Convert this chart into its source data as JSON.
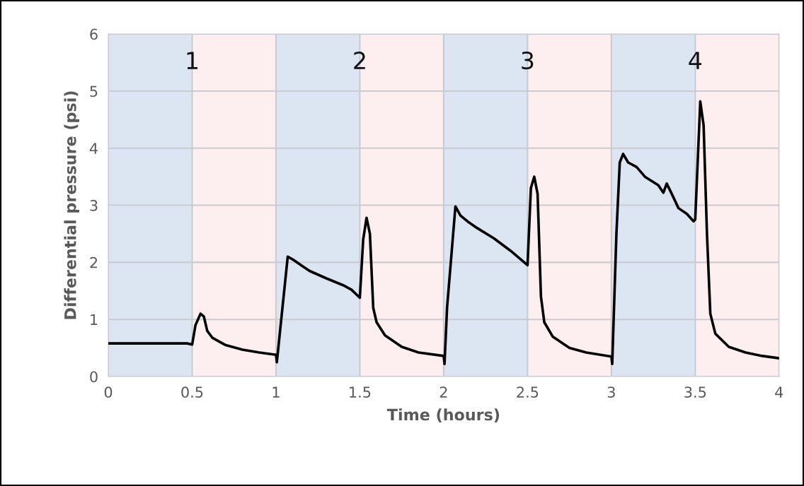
{
  "chart_data": {
    "type": "line",
    "xlabel": "Time (hours)",
    "ylabel": "Differential pressure (psi)",
    "xlim": [
      0,
      4
    ],
    "xticks": [
      0,
      0.5,
      1,
      1.5,
      2,
      2.5,
      3,
      3.5,
      4
    ],
    "ylim": [
      0,
      6
    ],
    "yticks": [
      0,
      1,
      2,
      3,
      4,
      5,
      6
    ],
    "grid": true,
    "legend": false,
    "marker": "none",
    "line_style": "solid",
    "bands": [
      {
        "axis": "x",
        "from": 0,
        "to": 0.5,
        "color": "#dce6f2"
      },
      {
        "axis": "x",
        "from": 0.5,
        "to": 1,
        "color": "#fdeeef"
      },
      {
        "axis": "x",
        "from": 1,
        "to": 1.5,
        "color": "#dce6f2"
      },
      {
        "axis": "x",
        "from": 1.5,
        "to": 2,
        "color": "#fdeeef"
      },
      {
        "axis": "x",
        "from": 2,
        "to": 2.5,
        "color": "#dce6f2"
      },
      {
        "axis": "x",
        "from": 2.5,
        "to": 3,
        "color": "#fdeeef"
      },
      {
        "axis": "x",
        "from": 3,
        "to": 3.5,
        "color": "#dce6f2"
      },
      {
        "axis": "x",
        "from": 3.5,
        "to": 4,
        "color": "#fdeeef"
      }
    ],
    "annotations": [
      {
        "text": "1",
        "x": 0.5,
        "y": 5.5
      },
      {
        "text": "2",
        "x": 1.5,
        "y": 5.5
      },
      {
        "text": "3",
        "x": 2.5,
        "y": 5.5
      },
      {
        "text": "4",
        "x": 3.5,
        "y": 5.5
      }
    ],
    "series": [
      {
        "color": "#000000",
        "x": [
          0,
          0.47,
          0.5,
          0.52,
          0.55,
          0.57,
          0.59,
          0.62,
          0.7,
          0.8,
          0.9,
          1.0,
          1.005,
          1.07,
          1.1,
          1.15,
          1.2,
          1.3,
          1.4,
          1.45,
          1.5,
          1.52,
          1.54,
          1.56,
          1.58,
          1.6,
          1.65,
          1.75,
          1.85,
          2.0,
          2.005,
          2.02,
          2.07,
          2.1,
          2.15,
          2.2,
          2.3,
          2.4,
          2.5,
          2.52,
          2.54,
          2.56,
          2.58,
          2.6,
          2.65,
          2.75,
          2.85,
          3.0,
          3.005,
          3.03,
          3.05,
          3.07,
          3.1,
          3.15,
          3.2,
          3.28,
          3.31,
          3.33,
          3.36,
          3.4,
          3.45,
          3.49,
          3.5,
          3.53,
          3.55,
          3.57,
          3.59,
          3.62,
          3.7,
          3.8,
          3.9,
          4.0
        ],
        "values": [
          0.58,
          0.58,
          0.56,
          0.9,
          1.1,
          1.05,
          0.8,
          0.68,
          0.55,
          0.47,
          0.42,
          0.38,
          0.25,
          2.1,
          2.05,
          1.95,
          1.85,
          1.72,
          1.6,
          1.52,
          1.38,
          2.4,
          2.78,
          2.5,
          1.2,
          0.95,
          0.72,
          0.52,
          0.42,
          0.36,
          0.22,
          1.2,
          2.98,
          2.82,
          2.7,
          2.6,
          2.42,
          2.2,
          1.95,
          3.3,
          3.5,
          3.2,
          1.4,
          0.95,
          0.7,
          0.5,
          0.42,
          0.35,
          0.22,
          2.5,
          3.75,
          3.9,
          3.75,
          3.67,
          3.5,
          3.35,
          3.22,
          3.38,
          3.2,
          2.95,
          2.85,
          2.72,
          2.75,
          4.82,
          4.4,
          2.5,
          1.1,
          0.75,
          0.52,
          0.42,
          0.36,
          0.32
        ]
      }
    ]
  }
}
